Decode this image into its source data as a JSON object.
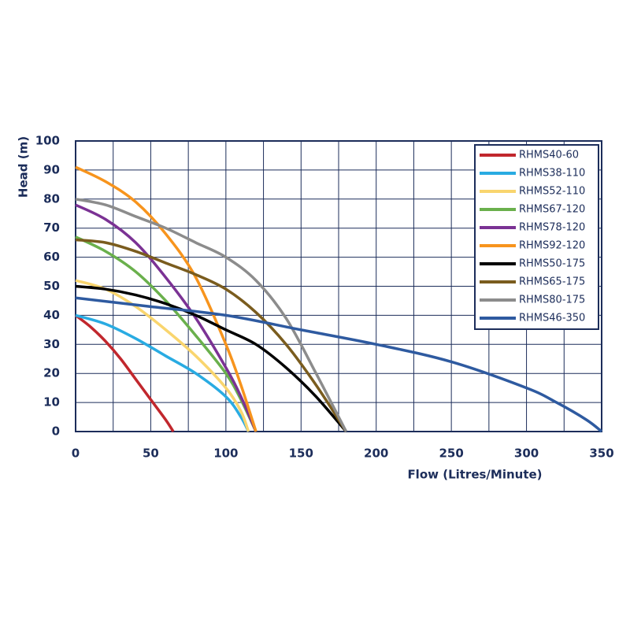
{
  "chart_data": {
    "type": "line",
    "xlabel": "Flow (Litres/Minute)",
    "ylabel": "Head (m)",
    "xlim": [
      0,
      350
    ],
    "ylim": [
      0,
      100
    ],
    "xticks": [
      0,
      50,
      100,
      150,
      200,
      250,
      300,
      350
    ],
    "xminorticks": [
      25,
      75,
      125,
      175,
      225,
      275,
      325
    ],
    "yticks": [
      0,
      10,
      20,
      30,
      40,
      50,
      60,
      70,
      80,
      90,
      100
    ],
    "grid": true,
    "legend": "upper right",
    "series": [
      {
        "name": "RHMS40-60",
        "color": "#c1272d",
        "x": [
          0,
          10,
          20,
          30,
          40,
          50,
          60,
          65
        ],
        "values": [
          40,
          36,
          31,
          25,
          18,
          11,
          4,
          0
        ]
      },
      {
        "name": "RHMS38-110",
        "color": "#29abe2",
        "x": [
          0,
          20,
          40,
          60,
          80,
          100,
          110,
          115
        ],
        "values": [
          40,
          37,
          32,
          26,
          20,
          12,
          5,
          0
        ]
      },
      {
        "name": "RHMS52-110",
        "color": "#f9d56e",
        "x": [
          0,
          20,
          40,
          60,
          80,
          100,
          110,
          115
        ],
        "values": [
          52,
          49,
          43,
          35,
          26,
          15,
          7,
          0
        ]
      },
      {
        "name": "RHMS67-120",
        "color": "#6ab04c",
        "x": [
          0,
          20,
          40,
          60,
          80,
          100,
          110,
          120
        ],
        "values": [
          67,
          62,
          55,
          45,
          33,
          20,
          11,
          0
        ]
      },
      {
        "name": "RHMS78-120",
        "color": "#7b3294",
        "x": [
          0,
          20,
          40,
          60,
          80,
          100,
          110,
          120
        ],
        "values": [
          78,
          73,
          65,
          53,
          39,
          22,
          12,
          0
        ]
      },
      {
        "name": "RHMS92-120",
        "color": "#f7941d",
        "x": [
          0,
          20,
          40,
          60,
          80,
          100,
          110,
          120
        ],
        "values": [
          91,
          86,
          79,
          68,
          53,
          30,
          16,
          0
        ]
      },
      {
        "name": "RHMS50-175",
        "color": "#000000",
        "x": [
          0,
          20,
          40,
          60,
          80,
          100,
          120,
          140,
          160,
          180
        ],
        "values": [
          50,
          49,
          47,
          44,
          40,
          35,
          30,
          22,
          12,
          0
        ]
      },
      {
        "name": "RHMS65-175",
        "color": "#7a5c1e",
        "x": [
          0,
          20,
          40,
          60,
          80,
          100,
          120,
          140,
          160,
          180
        ],
        "values": [
          66,
          65,
          62,
          58,
          54,
          49,
          41,
          30,
          16,
          0
        ]
      },
      {
        "name": "RHMS80-175",
        "color": "#8c8c8c",
        "x": [
          0,
          20,
          40,
          60,
          80,
          100,
          120,
          140,
          160,
          180
        ],
        "values": [
          80,
          78,
          74,
          70,
          65,
          60,
          52,
          39,
          20,
          0
        ]
      },
      {
        "name": "RHMS46-350",
        "color": "#2e5aa0",
        "x": [
          0,
          50,
          100,
          150,
          200,
          250,
          300,
          320,
          340,
          350
        ],
        "values": [
          46,
          43,
          40,
          35,
          30,
          24,
          15,
          10,
          4,
          0
        ]
      }
    ]
  }
}
